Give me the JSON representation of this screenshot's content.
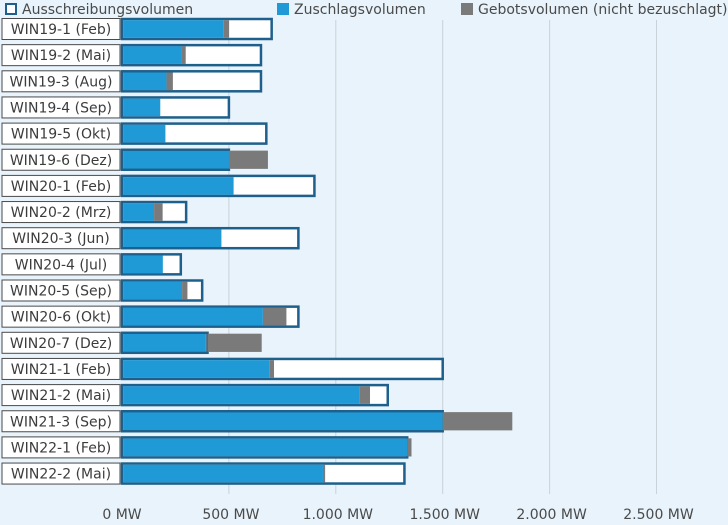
{
  "chart_data": {
    "type": "bar",
    "orientation": "horizontal",
    "title": "",
    "xlabel": "",
    "ylabel": "",
    "xlim": [
      0,
      2500
    ],
    "grid": true,
    "legend_position": "top",
    "legend": [
      {
        "name": "Ausschreibungsvolumen",
        "style": "outline",
        "color": "#1f5f8b"
      },
      {
        "name": "Zuschlagsvolumen",
        "style": "fill",
        "color": "#1f9ad6"
      },
      {
        "name": "Gebotsvolumen (nicht bezuschlagt)",
        "style": "fill",
        "color": "#7a7a7a"
      }
    ],
    "x_ticks": [
      "0 MW",
      "500 MW",
      "1.000 MW",
      "1.500 MW",
      "2.000 MW",
      "2.500 MW"
    ],
    "x_tick_values": [
      0,
      500,
      1000,
      1500,
      2000,
      2500
    ],
    "categories": [
      "WIN19-1 (Feb)",
      "WIN19-2 (Mai)",
      "WIN19-3 (Aug)",
      "WIN19-4 (Sep)",
      "WIN19-5 (Okt)",
      "WIN19-6 (Dez)",
      "WIN20-1 (Feb)",
      "WIN20-2 (Mrz)",
      "WIN20-3 (Jun)",
      "WIN20-4 (Jul)",
      "WIN20-5 (Sep)",
      "WIN20-6 (Okt)",
      "WIN20-7 (Dez)",
      "WIN21-1 (Feb)",
      "WIN21-2 (Mai)",
      "WIN21-3 (Sep)",
      "WIN22-1 (Feb)",
      "WIN22-2 (Mai)"
    ],
    "series": [
      {
        "name": "Ausschreibungsvolumen",
        "values": [
          700,
          650,
          650,
          500,
          675,
          500,
          900,
          300,
          825,
          275,
          375,
          825,
          400,
          1500,
          1243,
          1500,
          1334,
          1321
        ]
      },
      {
        "name": "Zuschlagsvolumen",
        "values": [
          476,
          278,
          208,
          179,
          203,
          509,
          522,
          150,
          465,
          191,
          281,
          659,
          390,
          691,
          1110,
          1500,
          1334,
          940
        ]
      },
      {
        "name": "Gebotsvolumen (nicht bezuschlagt)",
        "values": [
          25,
          20,
          30,
          0,
          0,
          173,
          0,
          40,
          0,
          0,
          25,
          110,
          263,
          20,
          50,
          325,
          20,
          10
        ]
      }
    ]
  },
  "colors": {
    "background": "#e8f3fb",
    "outline": "#1f5f8b",
    "awarded": "#1f9ad6",
    "unawarded": "#7a7a7a",
    "gridline": "#c9d2d9",
    "label_border": "#4a4a4a"
  }
}
